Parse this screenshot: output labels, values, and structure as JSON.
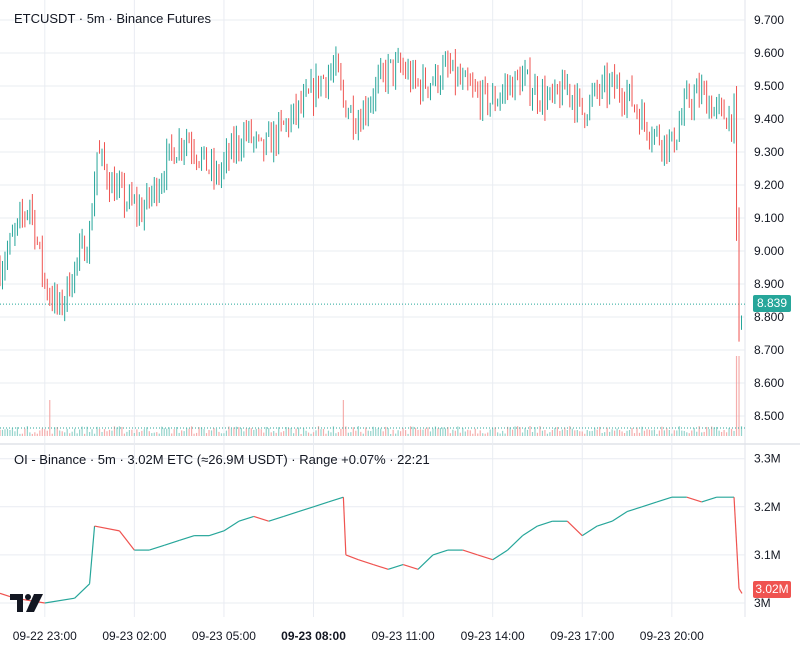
{
  "main_legend": "ETCUSDT · 5m · Binance Futures",
  "oi_legend": "OI - Binance · 5m · 3.02M ETC (≈26.9M USDT) · Range +0.07% · 22:21",
  "last_price_label": "8.839",
  "last_oi_label": "3.02M",
  "colors": {
    "up": "#26a69a",
    "down": "#ef5350",
    "grid": "#e9ecf2",
    "axis_text": "#131722"
  },
  "icons": {
    "logo": "tradingview-logo-icon"
  },
  "chart_data": [
    {
      "type": "candlestick",
      "title": "ETCUSDT · 5m · Binance Futures",
      "x_tick_labels": [
        "09-22 23:00",
        "09-23 02:00",
        "09-23 05:00",
        "09-23 08:00",
        "09-23 11:00",
        "09-23 14:00",
        "09-23 17:00",
        "09-23 20:00"
      ],
      "y_tick_labels": [
        "9.700",
        "9.600",
        "9.500",
        "9.400",
        "9.300",
        "9.200",
        "9.100",
        "9.000",
        "8.900",
        "8.800",
        "8.700",
        "8.600",
        "8.500"
      ],
      "ylim": [
        8.44,
        9.73
      ],
      "last_price": 8.839,
      "grid": true,
      "close_path": [
        [
          "09-22 21:30",
          8.95
        ],
        [
          "09-22 22:00",
          9.05
        ],
        [
          "09-22 22:30",
          9.15
        ],
        [
          "09-22 23:00",
          8.9
        ],
        [
          "09-22 23:30",
          8.82
        ],
        [
          "09-23 00:00",
          8.95
        ],
        [
          "09-23 00:30",
          9.05
        ],
        [
          "09-23 00:45",
          9.3
        ],
        [
          "09-23 01:15",
          9.2
        ],
        [
          "09-23 01:45",
          9.15
        ],
        [
          "09-23 02:15",
          9.12
        ],
        [
          "09-23 02:45",
          9.2
        ],
        [
          "09-23 03:15",
          9.3
        ],
        [
          "09-23 03:45",
          9.35
        ],
        [
          "09-23 04:15",
          9.28
        ],
        [
          "09-23 04:45",
          9.22
        ],
        [
          "09-23 05:15",
          9.3
        ],
        [
          "09-23 05:45",
          9.36
        ],
        [
          "09-23 06:15",
          9.3
        ],
        [
          "09-23 06:45",
          9.35
        ],
        [
          "09-23 07:15",
          9.4
        ],
        [
          "09-23 07:45",
          9.45
        ],
        [
          "09-23 08:15",
          9.52
        ],
        [
          "09-23 08:45",
          9.55
        ],
        [
          "09-23 09:00",
          9.45
        ],
        [
          "09-23 09:30",
          9.4
        ],
        [
          "09-23 10:00",
          9.48
        ],
        [
          "09-23 10:30",
          9.55
        ],
        [
          "09-23 11:00",
          9.55
        ],
        [
          "09-23 11:30",
          9.5
        ],
        [
          "09-23 12:00",
          9.52
        ],
        [
          "09-23 12:30",
          9.55
        ],
        [
          "09-23 13:00",
          9.5
        ],
        [
          "09-23 13:30",
          9.47
        ],
        [
          "09-23 14:00",
          9.45
        ],
        [
          "09-23 14:30",
          9.5
        ],
        [
          "09-23 15:00",
          9.52
        ],
        [
          "09-23 15:30",
          9.48
        ],
        [
          "09-23 16:00",
          9.45
        ],
        [
          "09-23 16:30",
          9.5
        ],
        [
          "09-23 17:00",
          9.42
        ],
        [
          "09-23 17:30",
          9.48
        ],
        [
          "09-23 18:00",
          9.5
        ],
        [
          "09-23 18:30",
          9.48
        ],
        [
          "09-23 19:00",
          9.4
        ],
        [
          "09-23 19:30",
          9.35
        ],
        [
          "09-23 20:00",
          9.32
        ],
        [
          "09-23 20:30",
          9.45
        ],
        [
          "09-23 21:00",
          9.48
        ],
        [
          "09-23 21:30",
          9.42
        ],
        [
          "09-23 22:05",
          9.4
        ],
        [
          "09-23 22:15",
          8.78
        ],
        [
          "09-23 22:21",
          8.839
        ]
      ]
    },
    {
      "type": "bar",
      "title": "Volume",
      "note": "volume bars along the bottom of the price pane, with a spike near 09-23 22:15"
    },
    {
      "type": "line",
      "title": "OI - Binance · 5m · 3.02M ETC (≈26.9M USDT) · Range +0.07% · 22:21",
      "y_tick_labels": [
        "3.3M",
        "3.2M",
        "3.1M",
        "3M"
      ],
      "ylim": [
        2.985,
        3.33
      ],
      "last_value": 3.02,
      "unit": "M",
      "points": [
        [
          "09-22 21:30",
          3.02
        ],
        [
          "09-22 22:00",
          3.01
        ],
        [
          "09-22 23:00",
          3.0
        ],
        [
          "09-23 00:00",
          3.01
        ],
        [
          "09-23 00:30",
          3.04
        ],
        [
          "09-23 00:40",
          3.16
        ],
        [
          "09-23 01:30",
          3.15
        ],
        [
          "09-23 02:00",
          3.11
        ],
        [
          "09-23 02:30",
          3.11
        ],
        [
          "09-23 03:00",
          3.12
        ],
        [
          "09-23 03:30",
          3.13
        ],
        [
          "09-23 04:00",
          3.14
        ],
        [
          "09-23 04:30",
          3.14
        ],
        [
          "09-23 05:00",
          3.15
        ],
        [
          "09-23 05:30",
          3.17
        ],
        [
          "09-23 06:00",
          3.18
        ],
        [
          "09-23 06:30",
          3.17
        ],
        [
          "09-23 07:00",
          3.18
        ],
        [
          "09-23 07:30",
          3.19
        ],
        [
          "09-23 08:00",
          3.2
        ],
        [
          "09-23 08:30",
          3.21
        ],
        [
          "09-23 09:00",
          3.22
        ],
        [
          "09-23 09:05",
          3.1
        ],
        [
          "09-23 09:30",
          3.09
        ],
        [
          "09-23 10:00",
          3.08
        ],
        [
          "09-23 10:30",
          3.07
        ],
        [
          "09-23 11:00",
          3.08
        ],
        [
          "09-23 11:30",
          3.07
        ],
        [
          "09-23 12:00",
          3.1
        ],
        [
          "09-23 12:30",
          3.11
        ],
        [
          "09-23 13:00",
          3.11
        ],
        [
          "09-23 13:30",
          3.1
        ],
        [
          "09-23 14:00",
          3.09
        ],
        [
          "09-23 14:30",
          3.11
        ],
        [
          "09-23 15:00",
          3.14
        ],
        [
          "09-23 15:30",
          3.16
        ],
        [
          "09-23 16:00",
          3.17
        ],
        [
          "09-23 16:30",
          3.17
        ],
        [
          "09-23 17:00",
          3.14
        ],
        [
          "09-23 17:30",
          3.16
        ],
        [
          "09-23 18:00",
          3.17
        ],
        [
          "09-23 18:30",
          3.19
        ],
        [
          "09-23 19:00",
          3.2
        ],
        [
          "09-23 19:30",
          3.21
        ],
        [
          "09-23 20:00",
          3.22
        ],
        [
          "09-23 20:30",
          3.22
        ],
        [
          "09-23 21:00",
          3.21
        ],
        [
          "09-23 21:30",
          3.22
        ],
        [
          "09-23 22:05",
          3.22
        ],
        [
          "09-23 22:15",
          3.03
        ],
        [
          "09-23 22:21",
          3.02
        ]
      ]
    }
  ]
}
